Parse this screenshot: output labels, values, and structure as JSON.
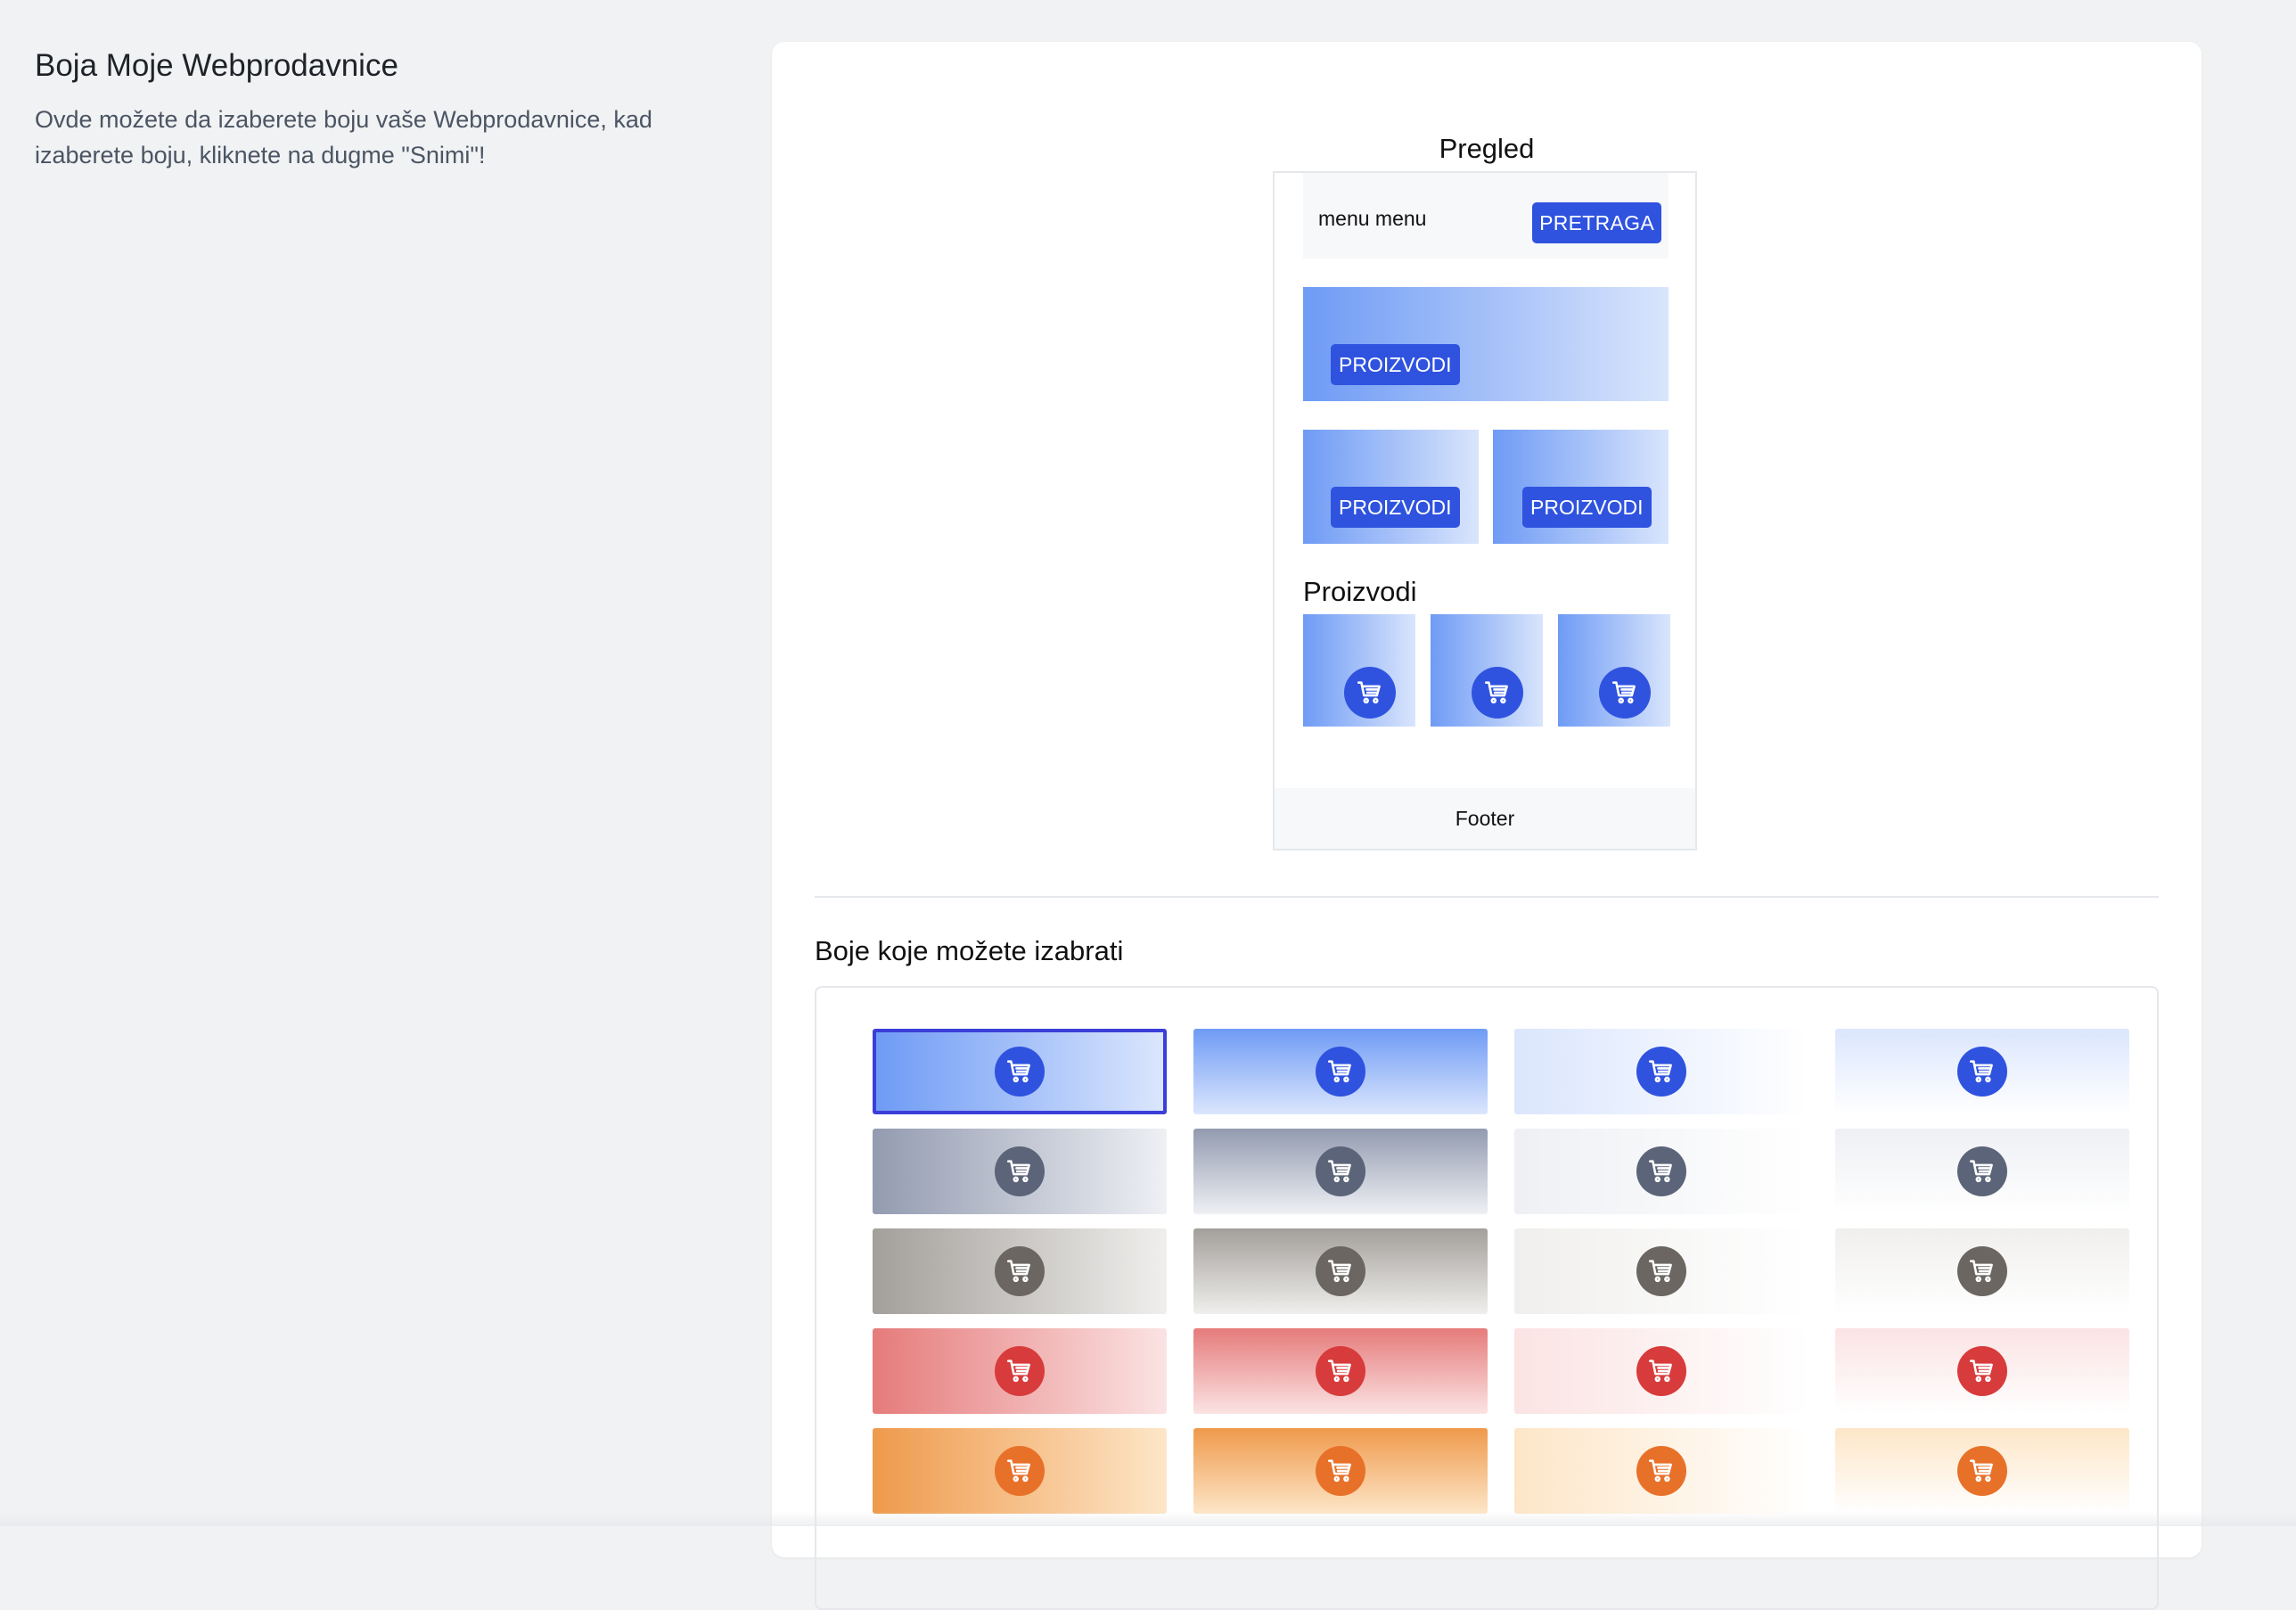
{
  "sidebar": {
    "title": "Boja Moje Webprodavnice",
    "description": "Ovde možete da izaberete boju vaše Webprodavnice, kad izaberete boju, kliknete na dugme \"Snimi\"!"
  },
  "preview": {
    "title": "Pregled",
    "menu_text": "menu menu",
    "search_button": "PRETRAGA",
    "banner_button": "PROIZVODI",
    "small_banner_buttons": [
      "PROIZVODI",
      "PROIZVODI"
    ],
    "section_title": "Proizvodi",
    "footer": "Footer",
    "cart_icon": "shopping-cart-icon"
  },
  "colors": {
    "title": "Boje koje možete izabrati",
    "selected_index": 0,
    "accent": "#3b3fd8",
    "rows": [
      {
        "name": "blue",
        "dark": "#6f9bf5",
        "light": "#dbe6fd",
        "icon_bg": "#2f53df"
      },
      {
        "name": "slate",
        "dark": "#939bb0",
        "light": "#eef0f4",
        "icon_bg": "#5b6478"
      },
      {
        "name": "stone",
        "dark": "#a39f9b",
        "light": "#f0efed",
        "icon_bg": "#6b6661"
      },
      {
        "name": "red",
        "dark": "#e67b7b",
        "light": "#fbe3e3",
        "icon_bg": "#d83b3b"
      },
      {
        "name": "orange",
        "dark": "#ef9a4c",
        "light": "#fde6c8",
        "icon_bg": "#e8712a"
      }
    ]
  }
}
